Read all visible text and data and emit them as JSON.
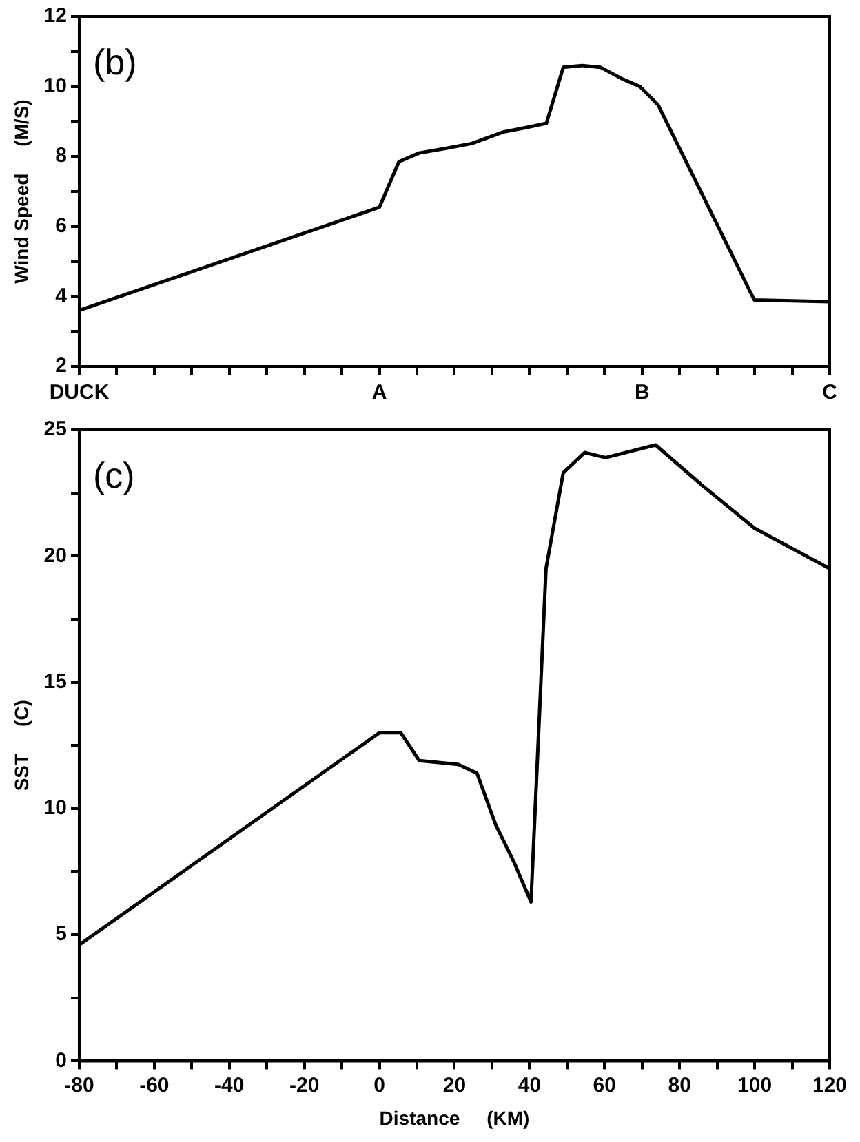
{
  "chart_data": [
    {
      "type": "line",
      "ylabel": "Wind Speed     (M/S)",
      "annotations": [
        "(b)",
        "DUCK",
        "A",
        "B",
        "C"
      ],
      "tick_labels": "y",
      "grid": false,
      "marker": "none",
      "line_style": "solid",
      "legend": false,
      "xlim": [
        -80,
        120
      ],
      "ylim": [
        2,
        12
      ],
      "xticks": [
        {
          "value": -80,
          "label": null
        },
        {
          "value": -70,
          "label": null
        },
        {
          "value": -60,
          "label": null
        },
        {
          "value": -50,
          "label": null
        },
        {
          "value": -40,
          "label": null
        },
        {
          "value": -30,
          "label": null
        },
        {
          "value": -20,
          "label": null
        },
        {
          "value": -10,
          "label": null
        },
        {
          "value": 0,
          "label": null
        },
        {
          "value": 10,
          "label": null
        },
        {
          "value": 20,
          "label": null
        },
        {
          "value": 30,
          "label": null
        },
        {
          "value": 40,
          "label": null
        },
        {
          "value": 50,
          "label": null
        },
        {
          "value": 60,
          "label": null
        },
        {
          "value": 70,
          "label": null
        },
        {
          "value": 80,
          "label": null
        },
        {
          "value": 90,
          "label": null
        },
        {
          "value": 100,
          "label": null
        },
        {
          "value": 110,
          "label": null
        },
        {
          "value": 120,
          "label": null
        }
      ],
      "yticks": [
        2,
        {
          "value": 3,
          "label": null
        },
        4,
        {
          "value": 5,
          "label": null
        },
        6,
        {
          "value": 7,
          "label": null
        },
        8,
        {
          "value": 9,
          "label": null
        },
        10,
        {
          "value": 11,
          "label": null
        },
        12
      ],
      "x": [
        -80,
        0,
        5.2,
        10.6,
        17.6,
        24.6,
        33,
        39.3,
        44.5,
        49,
        54,
        58.9,
        64.5,
        69.4,
        74.3,
        99.9,
        120
      ],
      "series": [
        {
          "color": "#000000",
          "values": [
            3.6,
            6.55,
            7.85,
            8.1,
            8.23,
            8.37,
            8.7,
            8.83,
            8.95,
            10.55,
            10.6,
            10.55,
            10.23,
            10.0,
            9.47,
            3.9,
            3.85
          ]
        }
      ]
    },
    {
      "type": "line",
      "xlabel": "Distance     (KM)",
      "ylabel": "SST     (C)",
      "annotations": [
        "(c)"
      ],
      "grid": false,
      "marker": "none",
      "line_style": "solid",
      "legend": false,
      "xlim": [
        -80,
        120
      ],
      "ylim": [
        0,
        25
      ],
      "xticks": [
        -80,
        {
          "value": -70,
          "label": null
        },
        -60,
        {
          "value": -50,
          "label": null
        },
        -40,
        {
          "value": -30,
          "label": null
        },
        -20,
        {
          "value": -10,
          "label": null
        },
        0,
        {
          "value": 10,
          "label": null
        },
        20,
        {
          "value": 30,
          "label": null
        },
        40,
        {
          "value": 50,
          "label": null
        },
        60,
        {
          "value": 70,
          "label": null
        },
        80,
        {
          "value": 90,
          "label": null
        },
        100,
        {
          "value": 110,
          "label": null
        },
        120
      ],
      "yticks": [
        0,
        {
          "value": 2.5,
          "label": null
        },
        5,
        {
          "value": 7.5,
          "label": null
        },
        10,
        {
          "value": 12.5,
          "label": null
        },
        15,
        {
          "value": 17.5,
          "label": null
        },
        20,
        {
          "value": 22.5,
          "label": null
        },
        25
      ],
      "x": [
        -80,
        0,
        5.7,
        10.6,
        21,
        26,
        31,
        35.8,
        40.4,
        44.4,
        45.6,
        49,
        54.7,
        60.3,
        73.6,
        86,
        100,
        120
      ],
      "series": [
        {
          "color": "#000000",
          "values": [
            4.6,
            13.0,
            13.0,
            11.9,
            11.75,
            11.4,
            9.35,
            7.9,
            6.3,
            19.5,
            20.5,
            23.3,
            24.1,
            23.9,
            24.4,
            22.8,
            21.1,
            19.5
          ]
        }
      ]
    }
  ]
}
